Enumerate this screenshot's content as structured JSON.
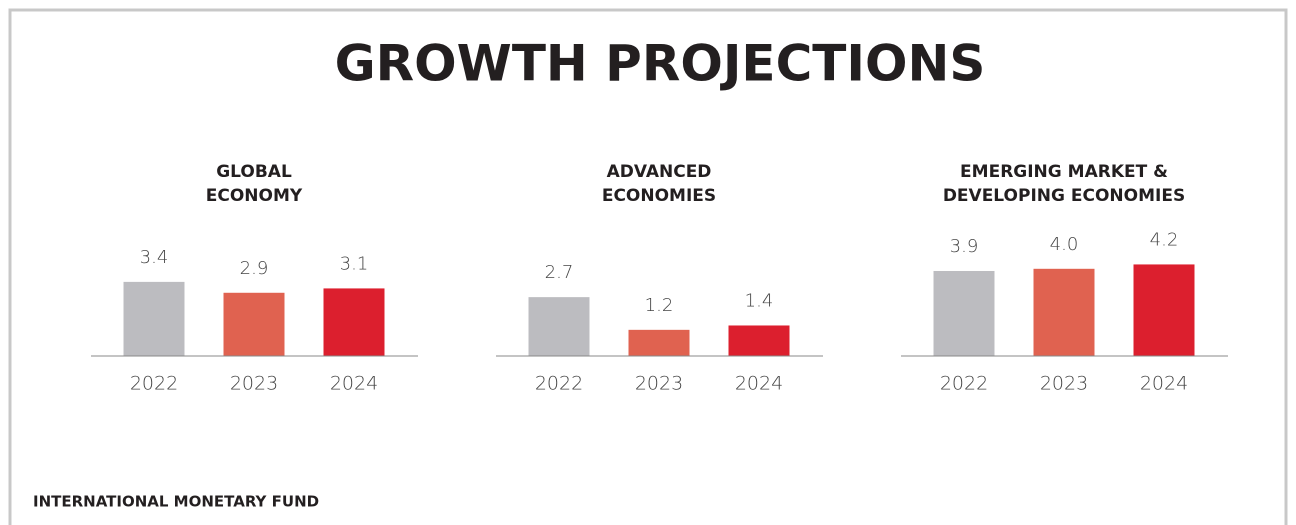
{
  "title": "GROWTH PROJECTIONS",
  "footer": "INTERNATIONAL MONETARY FUND",
  "chart_data": [
    {
      "type": "bar",
      "title": [
        "GLOBAL",
        "ECONOMY"
      ],
      "categories": [
        "2022",
        "2023",
        "2024"
      ],
      "values": [
        3.4,
        2.9,
        3.1
      ],
      "colors": [
        "#bcbcc0",
        "#e06250",
        "#dc1f2e"
      ]
    },
    {
      "type": "bar",
      "title": [
        "ADVANCED",
        "ECONOMIES"
      ],
      "categories": [
        "2022",
        "2023",
        "2024"
      ],
      "values": [
        2.7,
        1.2,
        1.4
      ],
      "colors": [
        "#bcbcc0",
        "#e06250",
        "#dc1f2e"
      ]
    },
    {
      "type": "bar",
      "title": [
        "EMERGING MARKET &",
        "DEVELOPING ECONOMIES"
      ],
      "categories": [
        "2022",
        "2023",
        "2024"
      ],
      "values": [
        3.9,
        4,
        4.2
      ],
      "value_labels": [
        "3.9",
        "4.0",
        "4.2"
      ],
      "colors": [
        "#bcbcc0",
        "#e06250",
        "#dc1f2e"
      ]
    }
  ]
}
